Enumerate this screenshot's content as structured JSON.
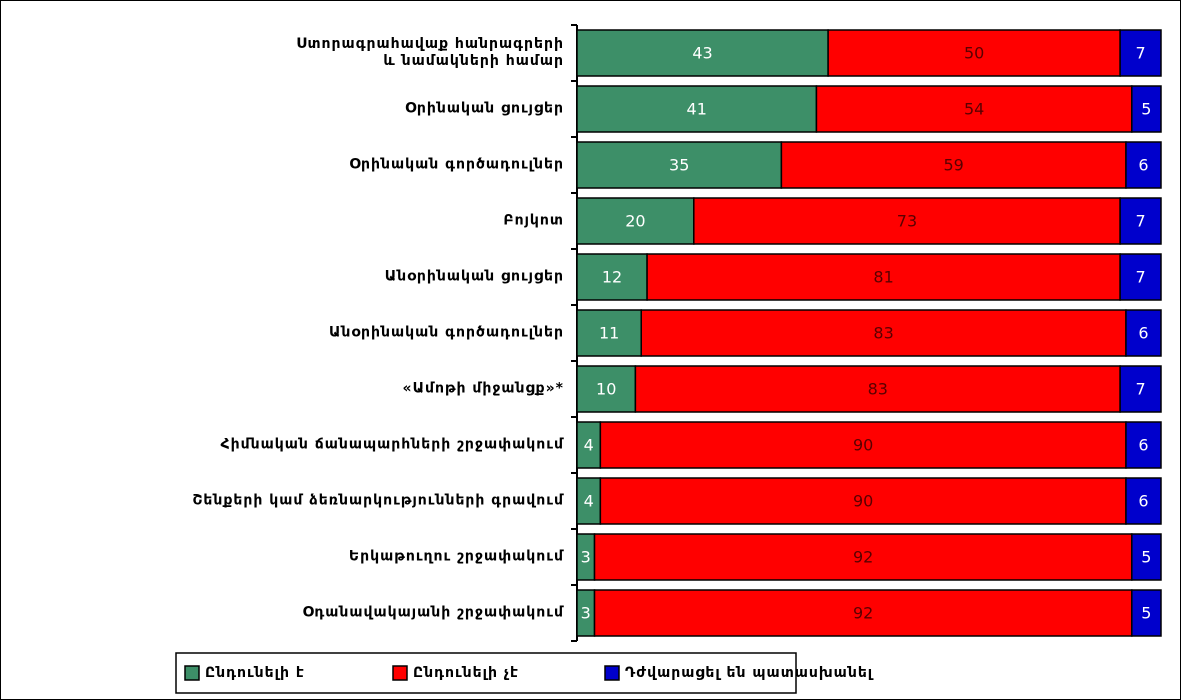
{
  "chart_data": {
    "type": "stacked-bar-horizontal",
    "categories": [
      "Ստորագրահավաք հանրագրերի\nև նամակների համար",
      "Օրինական ցույցեր",
      "Օրինական գործադուլներ",
      "Բոյկոտ",
      "Անօրինական ցույցեր",
      "Անօրինական գործադուլներ",
      "«Ամոթի միջանցք»*",
      "Հիմնական ճանապարհների շրջափակում",
      "Շենքերի կամ ձեռնարկությունների գրավում",
      "Երկաթուղու շրջափակում",
      "Օդանավակայանի շրջափակում"
    ],
    "series": [
      {
        "name": "Ընդունելի է",
        "color": "#3d8f68",
        "values": [
          43,
          41,
          35,
          20,
          12,
          11,
          10,
          4,
          4,
          3,
          3
        ]
      },
      {
        "name": "Ընդունելի չէ",
        "color": "#ff0000",
        "values": [
          50,
          54,
          59,
          73,
          81,
          83,
          83,
          90,
          90,
          92,
          92
        ]
      },
      {
        "name": "Դժվարացել են պատասխանել",
        "color": "#0000cc",
        "values": [
          7,
          5,
          6,
          7,
          7,
          6,
          7,
          6,
          6,
          5,
          5
        ]
      }
    ],
    "xlim": [
      0,
      100
    ]
  }
}
